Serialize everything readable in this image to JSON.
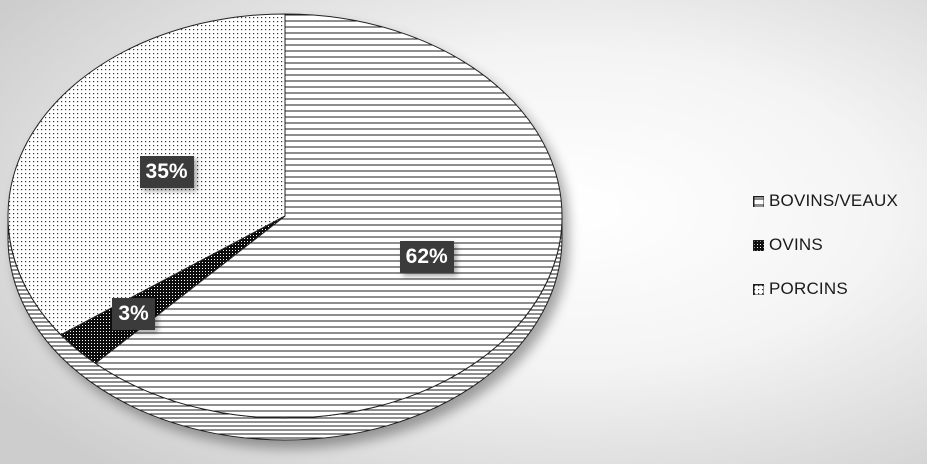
{
  "chart_data": {
    "type": "pie",
    "title": "",
    "categories": [
      "BOVINS/VEAUX",
      "OVINS",
      "PORCINS"
    ],
    "values": [
      62,
      3,
      35
    ],
    "labels": [
      "62%",
      "3%",
      "35%"
    ],
    "patterns": [
      "horizontal-lines",
      "dense-dots",
      "sparse-dots"
    ],
    "legend_position": "right",
    "three_d": true,
    "colors": {
      "slice_fill": "#ffffff",
      "pattern": "#1a1a1a",
      "label_background": "#3b3b3b",
      "label_text": "#ffffff",
      "background_center": "#ffffff",
      "background_edge": "#cfcfcf"
    }
  }
}
